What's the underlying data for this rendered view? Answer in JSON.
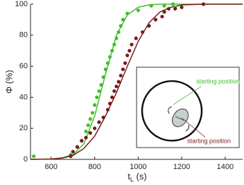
{
  "chart_data": {
    "type": "scatter",
    "y_label": "Φ (%)",
    "x_label": {
      "base": "t",
      "subscript": "L",
      "rest": " (s)"
    },
    "xlim": [
      505,
      1480
    ],
    "xticks": [
      600,
      800,
      1000,
      1200,
      1400
    ],
    "ylim": [
      0,
      100
    ],
    "yticks": [
      0,
      20,
      40,
      60,
      80,
      100
    ],
    "series": [
      {
        "color": "#3fbf2a",
        "x": [
          520,
          690,
          720,
          740,
          760,
          770,
          780,
          790,
          800,
          810,
          820,
          830,
          840,
          850,
          860,
          870,
          880,
          890,
          900,
          910,
          920,
          930,
          950,
          1000,
          1060,
          1120,
          1160,
          1170
        ],
        "values": [
          2,
          3,
          8,
          12,
          18,
          22,
          26,
          30,
          35,
          40,
          44,
          48,
          53,
          58,
          62,
          66,
          70,
          74,
          78,
          82,
          86,
          90,
          94,
          96,
          99,
          99,
          100,
          98
        ]
      },
      {
        "color": "#7a1a1a",
        "x": [
          690,
          700,
          720,
          740,
          760,
          780,
          800,
          820,
          840,
          860,
          870,
          880,
          890,
          900,
          910,
          920,
          930,
          940,
          950,
          960,
          970,
          990,
          1020,
          1050,
          1080,
          1110,
          1120,
          1140,
          1170,
          1200,
          1300
        ],
        "values": [
          2,
          5,
          8,
          12,
          14,
          17,
          20,
          24,
          27,
          32,
          36,
          40,
          44,
          47,
          50,
          54,
          58,
          62,
          67,
          70,
          74,
          78,
          82,
          86,
          90,
          92,
          95,
          97,
          97,
          98,
          100
        ]
      }
    ],
    "fits": [
      {
        "color": "#3fbf2a",
        "x": [
          505,
          600,
          650,
          700,
          750,
          800,
          850,
          900,
          950,
          1000,
          1050,
          1100,
          1150,
          1200,
          1300,
          1480
        ],
        "values": [
          0,
          0.2,
          1,
          3,
          10,
          28,
          55,
          80,
          93,
          98,
          99.5,
          100,
          100,
          100,
          100,
          100
        ]
      },
      {
        "color": "#7a1a1a",
        "x": [
          505,
          600,
          650,
          700,
          750,
          800,
          850,
          900,
          950,
          1000,
          1050,
          1100,
          1150,
          1200,
          1300,
          1480
        ],
        "values": [
          0,
          0.2,
          0.8,
          2.5,
          7,
          15,
          28,
          43,
          60,
          76,
          88,
          95,
          98,
          99.5,
          100,
          100
        ]
      }
    ],
    "annotations": [
      {
        "text": "starting position",
        "color": "#3fbf2a"
      },
      {
        "text": "starting position",
        "color": "#7a1a1a"
      }
    ]
  }
}
